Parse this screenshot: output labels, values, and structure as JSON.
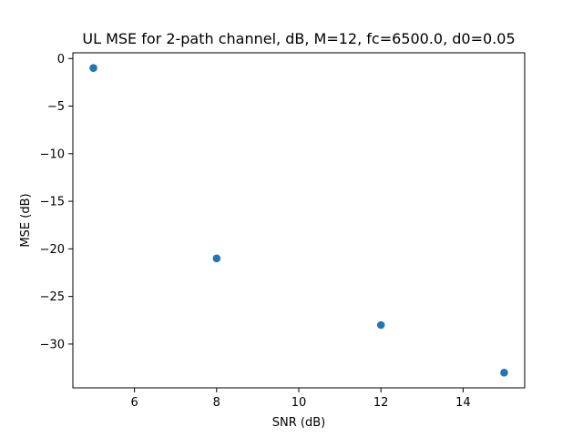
{
  "chart_data": {
    "type": "scatter",
    "title": "UL MSE for 2-path channel, dB, M=12, fc=6500.0, d0=0.05",
    "xlabel": "SNR (dB)",
    "ylabel": "MSE (dB)",
    "x": [
      5,
      8,
      12,
      15
    ],
    "y": [
      -1,
      -21,
      -28,
      -33
    ],
    "xlim": [
      4.5,
      15.5
    ],
    "ylim": [
      -34.6,
      0.6
    ],
    "xticks": [
      6,
      8,
      10,
      12,
      14
    ],
    "yticks": [
      0,
      -5,
      -10,
      -15,
      -20,
      -25,
      -30
    ],
    "xtick_labels": [
      "6",
      "8",
      "10",
      "12",
      "14"
    ],
    "ytick_labels": [
      "0",
      "−5",
      "−10",
      "−15",
      "−20",
      "−25",
      "−30"
    ],
    "marker_color": "#1f77b4",
    "grid": false,
    "legend": false
  }
}
